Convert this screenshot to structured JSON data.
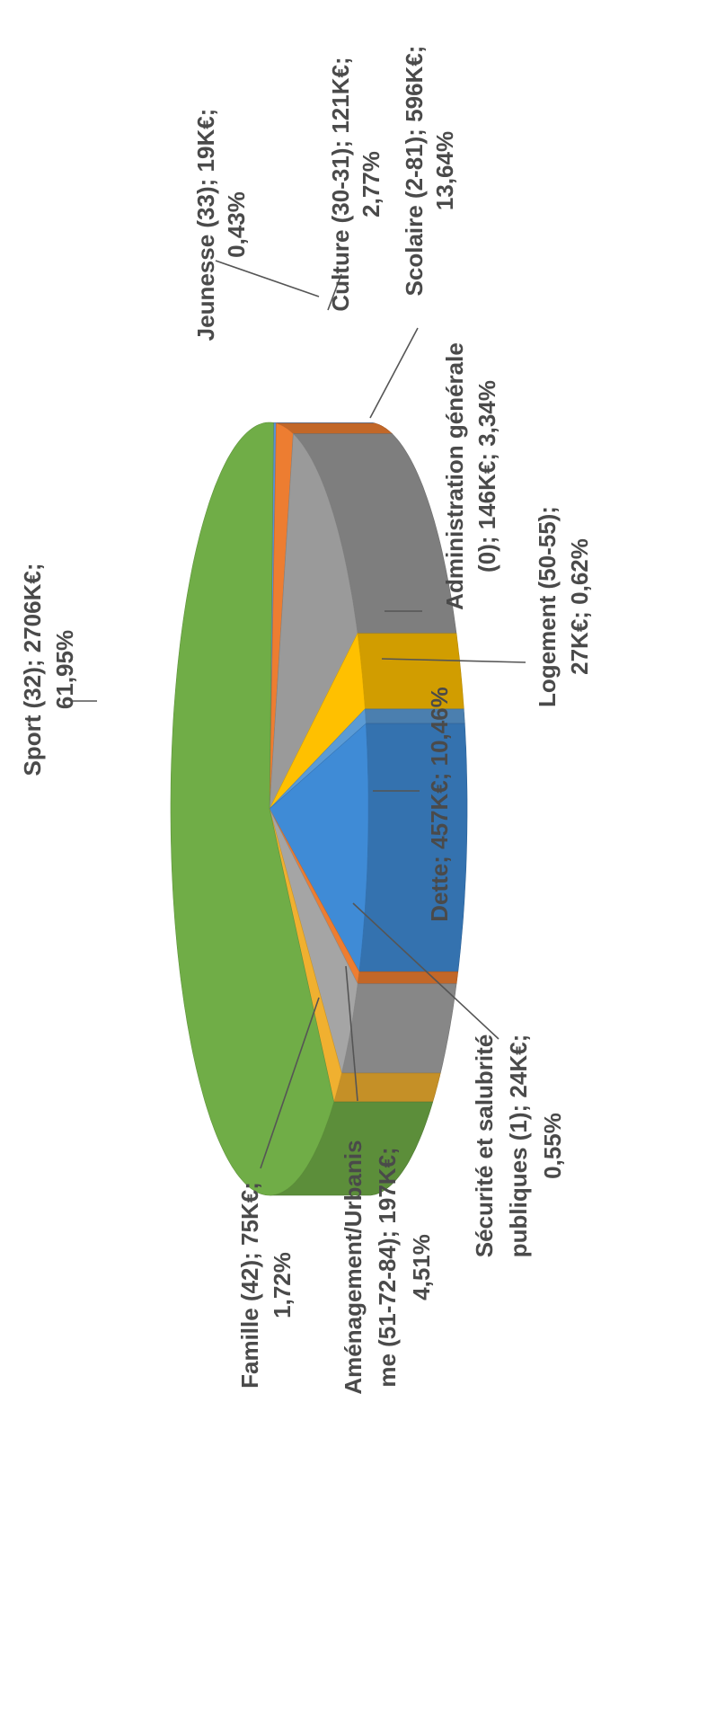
{
  "chart_data": {
    "type": "pie",
    "style": "3d-exploded-rotated",
    "title": "",
    "slices": [
      {
        "key": "jeunesse",
        "label": "Jeunesse (33)",
        "value_keur": 19,
        "percent": 0.43,
        "color": "#5a8fd3",
        "text_lines": [
          "Jeunesse (33); 19K€;",
          "0,43%"
        ]
      },
      {
        "key": "culture",
        "label": "Culture (30-31)",
        "value_keur": 121,
        "percent": 2.77,
        "color": "#ed7d31",
        "text_lines": [
          "Culture (30-31); 121K€;",
          "2,77%"
        ]
      },
      {
        "key": "scolaire",
        "label": "Scolaire (2-81)",
        "value_keur": 596,
        "percent": 13.64,
        "color": "#9a9a9a",
        "text_lines": [
          "Scolaire (2-81); 596K€;",
          "13,64%"
        ]
      },
      {
        "key": "administration",
        "label": "Administration générale (0)",
        "value_keur": 146,
        "percent": 3.34,
        "color": "#ffc000",
        "text_lines": [
          "Administration générale",
          "(0); 146K€; 3,34%"
        ]
      },
      {
        "key": "logement",
        "label": "Logement (50-55)",
        "value_keur": 27,
        "percent": 0.62,
        "color": "#5b9bd5",
        "text_lines": [
          "Logement (50-55);",
          "27K€; 0,62%"
        ]
      },
      {
        "key": "dette",
        "label": "Dette",
        "value_keur": 457,
        "percent": 10.46,
        "color": "#3f8bd6",
        "text_lines": [
          "Dette; 457K€; 10,46%"
        ]
      },
      {
        "key": "securite",
        "label": "Sécurité et salubrité publiques (1)",
        "value_keur": 24,
        "percent": 0.55,
        "color": "#ed7d31",
        "text_lines": [
          "Sécurité et salubrité",
          "publiques (1); 24K€;",
          "0,55%"
        ]
      },
      {
        "key": "amenagement",
        "label": "Aménagement/Urbanisme (51-72-84)",
        "value_keur": 197,
        "percent": 4.51,
        "color": "#a5a5a5",
        "text_lines": [
          "Aménagement/Urbanis",
          "me (51-72-84); 197K€;",
          "4,51%"
        ]
      },
      {
        "key": "famille",
        "label": "Famille (42)",
        "value_keur": 75,
        "percent": 1.72,
        "color": "#f0b030",
        "text_lines": [
          "Famille (42); 75K€;",
          "1,72%"
        ]
      },
      {
        "key": "sport",
        "label": "Sport (32)",
        "value_keur": 2706,
        "percent": 61.95,
        "color": "#70ad47",
        "text_lines": [
          "Sport (32); 2706K€;",
          "61,95%"
        ]
      }
    ],
    "legend": "none",
    "data_labels": "outside-with-leader-lines"
  }
}
